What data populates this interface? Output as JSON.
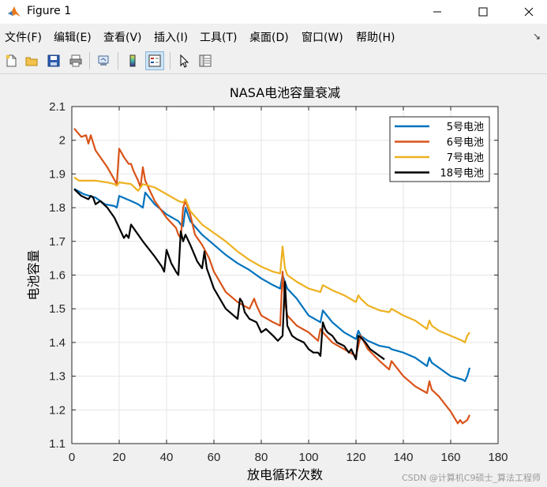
{
  "window": {
    "title": "Figure 1"
  },
  "menu": [
    "文件(F)",
    "编辑(E)",
    "查看(V)",
    "插入(I)",
    "工具(T)",
    "桌面(D)",
    "窗口(W)",
    "帮助(H)"
  ],
  "toolbar": {
    "icons": [
      "new-file-icon",
      "open-folder-icon",
      "save-icon",
      "print-icon",
      "link-plot-icon",
      "colorbar-icon",
      "legend-icon",
      "pointer-icon",
      "property-editor-icon"
    ],
    "active": "legend-icon"
  },
  "watermark": "CSDN @计算机C9硕士_算法工程师",
  "colors": {
    "axes_bg": "#ffffff",
    "grid": "#e6e6e6",
    "figure_bg": "#f0f0f0"
  },
  "chart_data": {
    "type": "line",
    "title": "NASA电池容量衰减",
    "xlabel": "放电循环次数",
    "ylabel": "电池容量",
    "xlim": [
      0,
      180
    ],
    "ylim": [
      1.1,
      2.1
    ],
    "xticks": [
      0,
      20,
      40,
      60,
      80,
      100,
      120,
      140,
      160,
      180
    ],
    "yticks": [
      1.1,
      1.2,
      1.3,
      1.4,
      1.5,
      1.6,
      1.7,
      1.8,
      1.9,
      2.0,
      2.1
    ],
    "grid": true,
    "legend_position": "top-right",
    "series": [
      {
        "name": "5号电池",
        "color": "#0072BD",
        "x": [
          1,
          5,
          10,
          14,
          18,
          19,
          20,
          25,
          28,
          30,
          31,
          35,
          40,
          45,
          46,
          47,
          48,
          50,
          55,
          60,
          65,
          70,
          75,
          80,
          85,
          88,
          89,
          90,
          91,
          95,
          100,
          105,
          106,
          110,
          115,
          120,
          121,
          122,
          125,
          130,
          134,
          135,
          140,
          145,
          150,
          151,
          152,
          155,
          160,
          165,
          166,
          167,
          168
        ],
        "y": [
          1.856,
          1.84,
          1.83,
          1.81,
          1.805,
          1.8,
          1.835,
          1.82,
          1.81,
          1.8,
          1.845,
          1.81,
          1.78,
          1.76,
          1.75,
          1.745,
          1.8,
          1.76,
          1.72,
          1.69,
          1.66,
          1.635,
          1.615,
          1.59,
          1.57,
          1.56,
          1.6,
          1.58,
          1.56,
          1.53,
          1.48,
          1.46,
          1.495,
          1.46,
          1.43,
          1.41,
          1.435,
          1.42,
          1.405,
          1.39,
          1.385,
          1.38,
          1.37,
          1.355,
          1.33,
          1.355,
          1.34,
          1.325,
          1.3,
          1.29,
          1.285,
          1.3,
          1.325
        ]
      },
      {
        "name": "6号电池",
        "color": "#D95319",
        "x": [
          1,
          4,
          6,
          7,
          8,
          10,
          15,
          19,
          20,
          22,
          24,
          25,
          26,
          28,
          29,
          30,
          31,
          33,
          35,
          40,
          44,
          45,
          46,
          47,
          48,
          50,
          52,
          55,
          58,
          60,
          65,
          70,
          75,
          77,
          78,
          80,
          85,
          88,
          89,
          90,
          91,
          95,
          100,
          104,
          105,
          106,
          110,
          115,
          120,
          122,
          125,
          130,
          134,
          135,
          140,
          145,
          150,
          151,
          152,
          155,
          160,
          163,
          164,
          165,
          167,
          168
        ],
        "y": [
          2.035,
          2.01,
          2.015,
          1.99,
          2.015,
          1.97,
          1.92,
          1.87,
          1.975,
          1.95,
          1.93,
          1.93,
          1.91,
          1.88,
          1.86,
          1.92,
          1.88,
          1.85,
          1.82,
          1.77,
          1.74,
          1.72,
          1.71,
          1.8,
          1.82,
          1.78,
          1.72,
          1.69,
          1.65,
          1.61,
          1.55,
          1.52,
          1.5,
          1.53,
          1.51,
          1.48,
          1.46,
          1.45,
          1.61,
          1.52,
          1.48,
          1.45,
          1.43,
          1.405,
          1.44,
          1.43,
          1.4,
          1.38,
          1.36,
          1.42,
          1.38,
          1.345,
          1.32,
          1.345,
          1.3,
          1.27,
          1.25,
          1.285,
          1.26,
          1.24,
          1.195,
          1.16,
          1.17,
          1.16,
          1.17,
          1.185
        ]
      },
      {
        "name": "7号电池",
        "color": "#EDB120",
        "x": [
          1,
          3,
          10,
          15,
          18,
          19,
          20,
          25,
          28,
          30,
          35,
          40,
          45,
          47,
          48,
          50,
          55,
          60,
          65,
          70,
          75,
          80,
          85,
          88,
          89,
          90,
          91,
          95,
          100,
          105,
          106,
          110,
          115,
          120,
          121,
          122,
          125,
          130,
          134,
          135,
          140,
          145,
          150,
          151,
          152,
          155,
          160,
          165,
          166,
          167,
          168
        ],
        "y": [
          1.89,
          1.88,
          1.88,
          1.875,
          1.87,
          1.865,
          1.875,
          1.87,
          1.85,
          1.87,
          1.86,
          1.84,
          1.82,
          1.815,
          1.825,
          1.79,
          1.75,
          1.725,
          1.7,
          1.67,
          1.645,
          1.625,
          1.61,
          1.605,
          1.685,
          1.62,
          1.6,
          1.58,
          1.56,
          1.55,
          1.57,
          1.555,
          1.54,
          1.52,
          1.54,
          1.53,
          1.51,
          1.495,
          1.49,
          1.5,
          1.48,
          1.465,
          1.44,
          1.465,
          1.45,
          1.435,
          1.42,
          1.405,
          1.4,
          1.42,
          1.43
        ]
      },
      {
        "name": "18号电池",
        "color": "#000000",
        "x": [
          1,
          4,
          7,
          8,
          9,
          10,
          12,
          15,
          18,
          20,
          22,
          23,
          24,
          25,
          28,
          30,
          35,
          38,
          39,
          40,
          42,
          44,
          45,
          46,
          47,
          48,
          50,
          53,
          55,
          56,
          57,
          60,
          65,
          70,
          71,
          72,
          73,
          75,
          78,
          80,
          82,
          85,
          87,
          89,
          90,
          91,
          93,
          95,
          98,
          100,
          102,
          104,
          105,
          106,
          107,
          108,
          110,
          112,
          115,
          117,
          118,
          120,
          121,
          122,
          124,
          126,
          128,
          130,
          132
        ],
        "y": [
          1.855,
          1.835,
          1.825,
          1.835,
          1.83,
          1.81,
          1.82,
          1.8,
          1.77,
          1.74,
          1.71,
          1.72,
          1.71,
          1.75,
          1.72,
          1.7,
          1.655,
          1.625,
          1.61,
          1.675,
          1.635,
          1.61,
          1.6,
          1.73,
          1.7,
          1.72,
          1.69,
          1.64,
          1.62,
          1.67,
          1.62,
          1.56,
          1.5,
          1.47,
          1.53,
          1.52,
          1.49,
          1.47,
          1.46,
          1.43,
          1.44,
          1.42,
          1.405,
          1.42,
          1.58,
          1.45,
          1.42,
          1.41,
          1.4,
          1.38,
          1.37,
          1.37,
          1.36,
          1.46,
          1.44,
          1.43,
          1.42,
          1.4,
          1.39,
          1.37,
          1.38,
          1.35,
          1.42,
          1.415,
          1.4,
          1.38,
          1.37,
          1.36,
          1.35
        ]
      }
    ]
  }
}
